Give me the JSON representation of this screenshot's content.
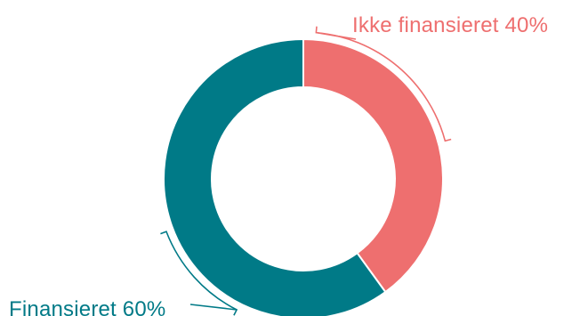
{
  "chart_data": {
    "type": "pie",
    "variant": "donut",
    "title": "",
    "slices": [
      {
        "label": "Ikke finansieret",
        "value": 40,
        "display": "Ikke finansieret 40%",
        "color": "#EE6F6F"
      },
      {
        "label": "Finansieret",
        "value": 60,
        "display": "Finansieret 60%",
        "color": "#007A87"
      }
    ],
    "start_angle_deg": 0,
    "direction": "clockwise",
    "legend": "none",
    "labels": "outside, with bracket leader lines"
  }
}
